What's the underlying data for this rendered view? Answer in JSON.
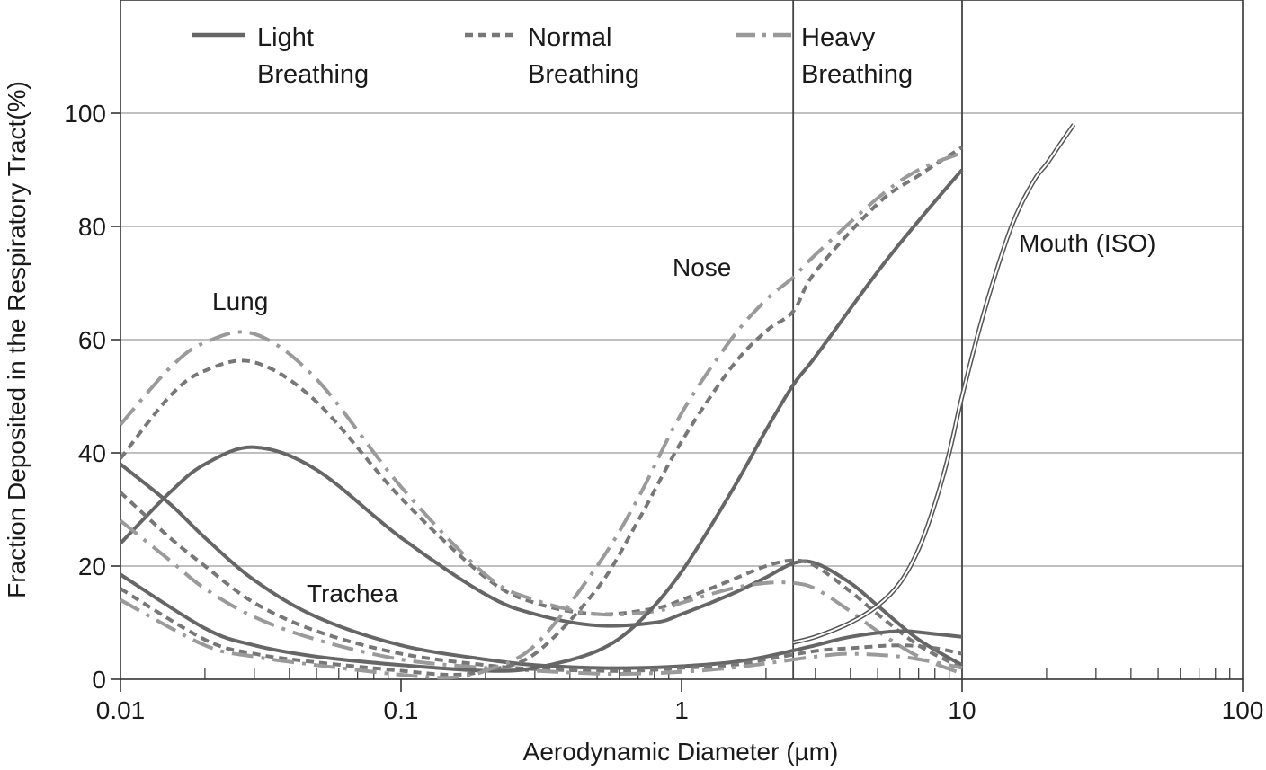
{
  "chart_data": {
    "type": "line",
    "title": "",
    "xlabel": "Aerodynamic Diameter (µm)",
    "ylabel": "Fraction Deposited in the Respiratory Tract(%)",
    "xscale": "log",
    "xlim": [
      0.01,
      100
    ],
    "ylim": [
      0,
      100
    ],
    "x_ticks": [
      0.01,
      0.1,
      1,
      10,
      100
    ],
    "x_tick_labels": [
      "0.01",
      "0.1",
      "1",
      "10",
      "100"
    ],
    "y_ticks": [
      0,
      20,
      40,
      60,
      80,
      100
    ],
    "y_tick_labels": [
      "0",
      "20",
      "40",
      "60",
      "80",
      "100"
    ],
    "grid": "horizontal",
    "vertical_lines_x": [
      2.5,
      10
    ],
    "legend_position": "top",
    "legend": [
      {
        "label_line1": "Light",
        "label_line2": "Breathing",
        "style": "solid"
      },
      {
        "label_line1": "Normal",
        "label_line2": "Breathing",
        "style": "dashed"
      },
      {
        "label_line1": "Heavy",
        "label_line2": "Breathing",
        "style": "dashdot"
      }
    ],
    "annotations": {
      "lung": "Lung",
      "trachea": "Trachea",
      "nose": "Nose",
      "mouth": "Mouth (ISO)"
    },
    "series": [
      {
        "region": "Lung",
        "breathing": "light",
        "style": "solid",
        "x": [
          0.01,
          0.015,
          0.02,
          0.03,
          0.05,
          0.1,
          0.2,
          0.3,
          0.5,
          0.8,
          1,
          1.5,
          2,
          2.5,
          3,
          4,
          5,
          7,
          10
        ],
        "y": [
          24,
          33,
          38,
          41,
          37,
          25,
          15,
          11.5,
          9.5,
          10,
          11.5,
          15,
          18,
          20.5,
          20.5,
          17,
          13,
          7,
          2.5
        ]
      },
      {
        "region": "Lung",
        "breathing": "normal",
        "style": "dashed",
        "x": [
          0.01,
          0.015,
          0.02,
          0.03,
          0.05,
          0.1,
          0.2,
          0.3,
          0.5,
          0.8,
          1,
          1.5,
          2,
          2.5,
          3,
          4,
          5,
          7,
          10
        ],
        "y": [
          39,
          50,
          54.5,
          56,
          49,
          32,
          18,
          13.5,
          11.5,
          12.5,
          14,
          17.5,
          20,
          21,
          20,
          15.5,
          11.5,
          6,
          2
        ]
      },
      {
        "region": "Lung",
        "breathing": "heavy",
        "style": "dashdot",
        "x": [
          0.01,
          0.015,
          0.02,
          0.03,
          0.05,
          0.1,
          0.2,
          0.3,
          0.5,
          0.8,
          1,
          1.5,
          2,
          2.5,
          3,
          4,
          5,
          7,
          10
        ],
        "y": [
          45,
          55,
          59.5,
          61,
          53,
          34,
          18.5,
          14,
          11.5,
          12,
          13.5,
          16,
          17,
          17,
          16,
          12,
          8.5,
          4,
          1
        ]
      },
      {
        "region": "Trachea",
        "breathing": "light",
        "style": "solid",
        "x": [
          0.01,
          0.015,
          0.02,
          0.03,
          0.05,
          0.1,
          0.2,
          0.3,
          0.5,
          0.7,
          1,
          1.5,
          2,
          3,
          4,
          6,
          8,
          10
        ],
        "y": [
          38,
          31,
          25,
          17.5,
          11,
          6,
          3.5,
          2.5,
          2,
          2,
          2.3,
          3,
          4,
          6,
          7.5,
          8.5,
          8,
          7.5
        ]
      },
      {
        "region": "Trachea",
        "breathing": "normal",
        "style": "dashed",
        "x": [
          0.01,
          0.015,
          0.02,
          0.03,
          0.05,
          0.1,
          0.2,
          0.3,
          0.5,
          0.7,
          1,
          1.5,
          2,
          3,
          4,
          6,
          8,
          10
        ],
        "y": [
          33,
          25,
          20,
          13.5,
          8.5,
          4.5,
          2.5,
          1.8,
          1.5,
          1.5,
          2,
          2.5,
          3.5,
          5,
          5.5,
          6,
          5.5,
          4.5
        ]
      },
      {
        "region": "Trachea",
        "breathing": "heavy",
        "style": "dashdot",
        "x": [
          0.01,
          0.015,
          0.02,
          0.03,
          0.05,
          0.1,
          0.2,
          0.3,
          0.5,
          0.7,
          1,
          1.5,
          2,
          3,
          4,
          6,
          8,
          10
        ],
        "y": [
          28,
          21,
          16,
          11,
          7,
          3.5,
          2,
          1.5,
          1,
          1,
          1.3,
          2,
          2.8,
          4,
          4.5,
          4,
          3,
          2
        ]
      },
      {
        "region": "Nose",
        "breathing": "light",
        "style": "solid",
        "x": [
          0.01,
          0.02,
          0.03,
          0.05,
          0.1,
          0.2,
          0.3,
          0.5,
          0.7,
          1,
          1.5,
          2,
          2.5,
          3,
          5,
          7,
          10
        ],
        "y": [
          18.5,
          9,
          6,
          4,
          2.5,
          1.5,
          2,
          5,
          10,
          19,
          33,
          44,
          52,
          57,
          72,
          81,
          90
        ]
      },
      {
        "region": "Nose",
        "breathing": "normal",
        "style": "dashed",
        "x": [
          0.01,
          0.02,
          0.03,
          0.05,
          0.1,
          0.15,
          0.2,
          0.3,
          0.5,
          0.7,
          1,
          1.5,
          2,
          2.5,
          3,
          5,
          7,
          10
        ],
        "y": [
          16,
          7,
          4.5,
          3,
          1.5,
          0.8,
          1.5,
          4.5,
          16,
          28,
          42,
          55,
          61.5,
          65,
          72,
          84,
          89,
          94
        ]
      },
      {
        "region": "Nose",
        "breathing": "heavy",
        "style": "dashdot",
        "x": [
          0.01,
          0.02,
          0.03,
          0.05,
          0.1,
          0.15,
          0.2,
          0.3,
          0.5,
          0.7,
          1,
          1.5,
          2,
          2.5,
          3,
          5,
          7,
          10
        ],
        "y": [
          14,
          6,
          4,
          2.5,
          0.8,
          0.3,
          1.5,
          6,
          20,
          32,
          47,
          60,
          67,
          71,
          75,
          85,
          90,
          93
        ]
      },
      {
        "region": "Mouth (ISO)",
        "breathing": "",
        "style": "double",
        "x": [
          2.5,
          3,
          4,
          5,
          6,
          7,
          8,
          9,
          10,
          12,
          15,
          18,
          20,
          22,
          25
        ],
        "y": [
          6.5,
          7.5,
          10,
          13,
          17,
          23,
          31,
          40,
          50,
          65,
          80,
          88,
          91,
          94,
          98
        ]
      }
    ]
  }
}
